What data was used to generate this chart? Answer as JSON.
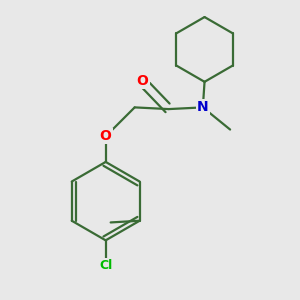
{
  "background_color": "#e8e8e8",
  "bond_color": "#3a6b35",
  "atom_colors": {
    "O": "#ff0000",
    "N": "#0000cc",
    "Cl": "#00bb00",
    "C": "#000000"
  },
  "figsize": [
    3.0,
    3.0
  ],
  "dpi": 100,
  "bond_lw": 1.6,
  "font_size": 10
}
